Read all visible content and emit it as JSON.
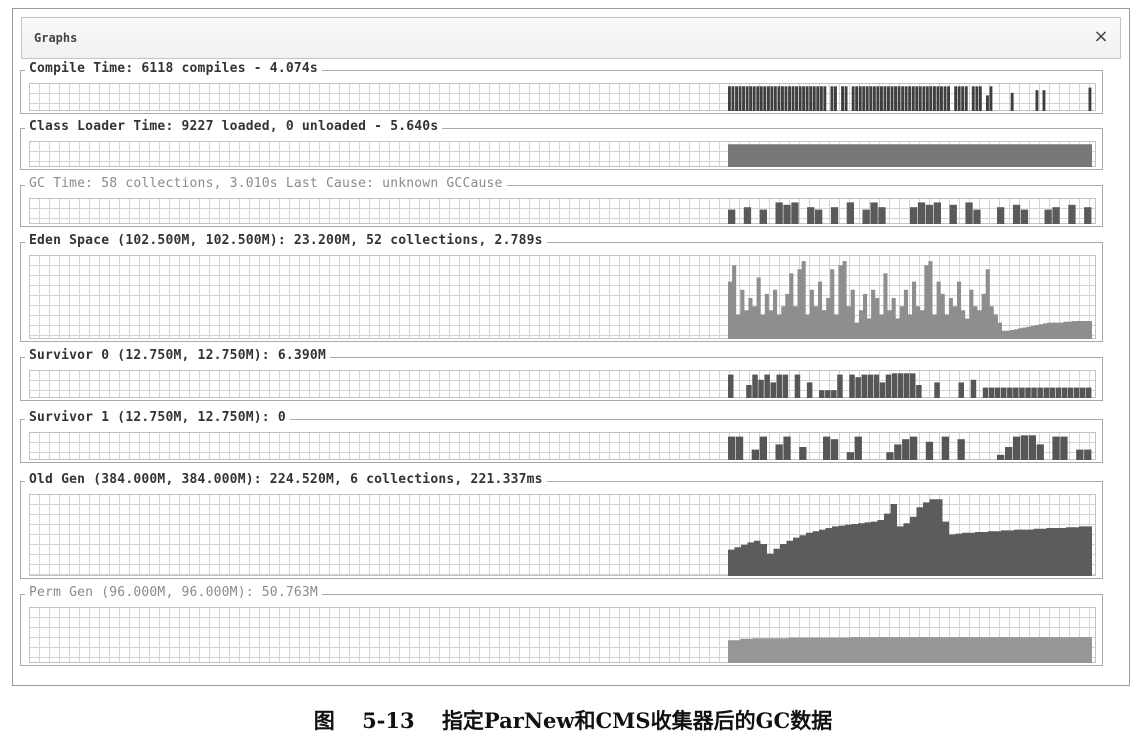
{
  "window": {
    "title": "Graphs",
    "close_glyph": "×"
  },
  "panels": [
    {
      "id": "compile",
      "title": "Compile Time: 6118 compiles - 4.074s",
      "dim": false,
      "color": "#3f3f3f",
      "style": "bars",
      "levels": [
        0.95,
        0.95,
        0.95,
        0.95,
        0.95,
        0.95,
        0.95,
        0.95,
        0.95,
        0.95,
        0.95,
        0.95,
        0.95,
        0.95,
        0.95,
        0.95,
        0.95,
        0.95,
        0.95,
        0.95,
        0.95,
        0.95,
        0.95,
        0.95,
        0.95,
        0.95,
        0.95,
        0.95,
        0,
        0.95,
        0.95,
        0,
        0.95,
        0.95,
        0,
        0.95,
        0.95,
        0.95,
        0.95,
        0.95,
        0.95,
        0.95,
        0.95,
        0.95,
        0.95,
        0.95,
        0.95,
        0.95,
        0.95,
        0.95,
        0.95,
        0.95,
        0.95,
        0.95,
        0.95,
        0.95,
        0.95,
        0.95,
        0.95,
        0.95,
        0.95,
        0.95,
        0.95,
        0,
        0.95,
        0.95,
        0.95,
        0.95,
        0,
        0.95,
        0.95,
        0.95,
        0,
        0.6,
        0.95,
        0,
        0,
        0,
        0,
        0,
        0.7,
        0,
        0,
        0,
        0,
        0,
        0,
        0.8,
        0,
        0.8,
        0,
        0,
        0,
        0,
        0,
        0,
        0,
        0,
        0,
        0,
        0,
        0,
        0.9
      ]
    },
    {
      "id": "classloader",
      "title": "Class Loader Time: 9227 loaded, 0 unloaded - 5.640s",
      "dim": false,
      "color": "#777777",
      "style": "block",
      "levels": [
        0.95,
        0.95,
        0.95,
        0.95,
        0.95,
        0.95,
        0.95,
        0.95,
        0.95,
        0.95,
        0.95,
        0.95,
        0.95,
        0.95,
        0.95,
        0.95,
        0.95,
        0.95,
        0.95,
        0.95,
        0.95,
        0.95,
        0.95,
        0.95,
        0.95,
        0.95,
        0.95,
        0.95,
        0.95,
        0.95,
        0.95,
        0.95,
        0.95,
        0.95,
        0.95,
        0.95,
        0.95,
        0.95,
        0.95,
        0.95,
        0.95,
        0.95,
        0.95,
        0.95,
        0.95,
        0.95,
        0.95,
        0.95,
        0.95,
        0.95,
        0.95,
        0.95,
        0.95,
        0.95,
        0.95,
        0.95,
        0.95,
        0.95,
        0.95,
        0.95,
        0.95,
        0.95,
        0.95,
        0.95,
        0.95,
        0.95,
        0.95,
        0.95,
        0.95,
        0.95,
        0.95,
        0.95,
        0.95,
        0.95,
        0.95,
        0.95,
        0.95,
        0.95,
        0.95,
        0.95,
        0.95,
        0.95,
        0.95,
        0.95,
        0.95,
        0.95,
        0.95,
        0.95,
        0.95,
        0.95,
        0.95,
        0.95,
        0.95,
        0.95,
        0.95,
        0.95,
        0.95,
        0.95,
        0.95,
        0.95,
        0.95,
        0.95,
        0.95,
        0.95,
        0.95,
        0.95,
        0.95,
        0.95,
        0.95,
        0.95,
        0.95,
        0.95
      ]
    },
    {
      "id": "gc",
      "title": "GC Time: 58 collections, 3.010s  Last Cause: unknown GCCause",
      "dim": true,
      "color": "#5a5a5a",
      "style": "bars",
      "levels": [
        0.6,
        0,
        0.7,
        0,
        0.6,
        0,
        0.9,
        0.8,
        0.9,
        0,
        0.7,
        0.6,
        0,
        0.7,
        0,
        0.9,
        0,
        0.6,
        0.9,
        0.7,
        0,
        0,
        0,
        0.7,
        0.9,
        0.8,
        0.9,
        0,
        0.8,
        0,
        0.9,
        0.6,
        0,
        0,
        0.7,
        0,
        0.8,
        0.6,
        0,
        0,
        0.6,
        0.7,
        0,
        0.8,
        0,
        0.7
      ]
    },
    {
      "id": "eden",
      "title": "Eden Space (102.500M, 102.500M): 23.200M, 52 collections, 2.789s",
      "dim": false,
      "color": "#8e8e8e",
      "style": "area",
      "levels": [
        0.7,
        0.9,
        0.3,
        0.6,
        0.35,
        0.5,
        0.4,
        0.75,
        0.3,
        0.55,
        0.35,
        0.6,
        0.3,
        0.4,
        0.55,
        0.8,
        0.4,
        0.85,
        0.95,
        0.3,
        0.6,
        0.4,
        0.7,
        0.35,
        0.5,
        0.85,
        0.3,
        0.9,
        0.95,
        0.4,
        0.6,
        0.2,
        0.35,
        0.55,
        0.25,
        0.6,
        0.5,
        0.3,
        0.8,
        0.35,
        0.5,
        0.25,
        0.4,
        0.6,
        0.3,
        0.7,
        0.4,
        0.35,
        0.9,
        0.95,
        0.3,
        0.7,
        0.55,
        0.3,
        0.5,
        0.4,
        0.7,
        0.35,
        0.25,
        0.6,
        0.4,
        0.35,
        0.55,
        0.85,
        0.4,
        0.3,
        0.2,
        0.1,
        0.1,
        0.11,
        0.12,
        0.13,
        0.14,
        0.15,
        0.16,
        0.17,
        0.18,
        0.19,
        0.2,
        0.2,
        0.2,
        0.2,
        0.21,
        0.21,
        0.22,
        0.22,
        0.22,
        0.22,
        0.22
      ]
    },
    {
      "id": "survivor0",
      "title": "Survivor 0 (12.750M, 12.750M): 6.390M",
      "dim": false,
      "color": "#565656",
      "style": "bars",
      "levels": [
        0.9,
        0,
        0,
        0.5,
        0.9,
        0.7,
        0.9,
        0.6,
        0.9,
        0.9,
        0,
        0.9,
        0,
        0.6,
        0,
        0.3,
        0.3,
        0.3,
        0.9,
        0,
        0.9,
        0.8,
        0.9,
        0.9,
        0.9,
        0.6,
        0.9,
        0.95,
        0.95,
        0.95,
        0.95,
        0.5,
        0,
        0,
        0.6,
        0,
        0,
        0,
        0.6,
        0,
        0.7,
        0,
        0.4,
        0.4,
        0.4,
        0.4,
        0.4,
        0.4,
        0.4,
        0.4,
        0.4,
        0.4,
        0.4,
        0.4,
        0.4,
        0.4,
        0.4,
        0.4,
        0.4,
        0.4
      ]
    },
    {
      "id": "survivor1",
      "title": "Survivor 1 (12.750M, 12.750M): 0",
      "dim": false,
      "color": "#565656",
      "style": "bars",
      "levels": [
        0.9,
        0.9,
        0,
        0.4,
        0.9,
        0,
        0.6,
        0.9,
        0,
        0.5,
        0,
        0,
        0.9,
        0.8,
        0,
        0.3,
        0.9,
        0,
        0,
        0,
        0.3,
        0.6,
        0.8,
        0.9,
        0,
        0.7,
        0,
        0.9,
        0,
        0.8,
        0,
        0,
        0,
        0,
        0.2,
        0.5,
        0.9,
        0.95,
        0.95,
        0.6,
        0,
        0.9,
        0.9,
        0,
        0.4,
        0.4
      ]
    },
    {
      "id": "oldgen",
      "title": "Old Gen (384.000M, 384.000M): 224.520M, 6 collections, 221.337ms",
      "dim": false,
      "color": "#5c5c5c",
      "style": "area",
      "levels": [
        0.33,
        0.36,
        0.39,
        0.42,
        0.44,
        0.4,
        0.28,
        0.34,
        0.4,
        0.44,
        0.48,
        0.51,
        0.54,
        0.56,
        0.58,
        0.6,
        0.62,
        0.63,
        0.64,
        0.65,
        0.66,
        0.67,
        0.68,
        0.7,
        0.78,
        0.9,
        0.62,
        0.66,
        0.74,
        0.86,
        0.92,
        0.96,
        0.96,
        0.68,
        0.52,
        0.53,
        0.54,
        0.54,
        0.55,
        0.55,
        0.56,
        0.56,
        0.57,
        0.57,
        0.58,
        0.58,
        0.58,
        0.59,
        0.59,
        0.6,
        0.6,
        0.6,
        0.61,
        0.61,
        0.62,
        0.62
      ]
    },
    {
      "id": "permgen",
      "title": "Perm Gen (96.000M, 96.000M): 50.763M",
      "dim": true,
      "color": "#969696",
      "style": "area",
      "levels": [
        0.42,
        0.45,
        0.46,
        0.46,
        0.46,
        0.47,
        0.47,
        0.47,
        0.47,
        0.47,
        0.48,
        0.48,
        0.48,
        0.48,
        0.48,
        0.48,
        0.48,
        0.48,
        0.48,
        0.48,
        0.48,
        0.48,
        0.48,
        0.48,
        0.48,
        0.48,
        0.48,
        0.48,
        0.48,
        0.48
      ]
    }
  ],
  "caption": {
    "figure": "图",
    "number": "5-13",
    "text": "指定ParNew和CMS收集器后的GC数据"
  }
}
